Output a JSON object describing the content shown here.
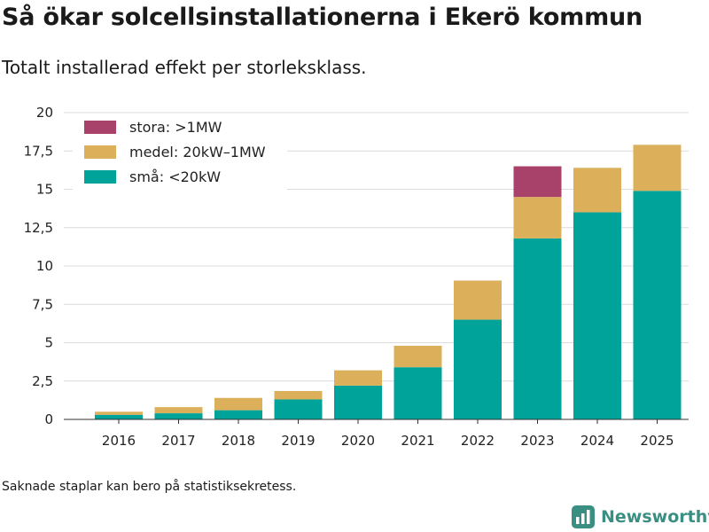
{
  "title": "Så ökar solcellsinstallationerna i Ekerö kommun",
  "subtitle": "Totalt installerad effekt per storleksklass.",
  "footnote": "Saknade staplar kan bero på statistiksekretess.",
  "brand": {
    "name": "Newsworthy",
    "color": "#3a8f82"
  },
  "chart_data": {
    "type": "bar",
    "stacked": true,
    "categories": [
      "2016",
      "2017",
      "2018",
      "2019",
      "2020",
      "2021",
      "2022",
      "2023",
      "2024",
      "2025"
    ],
    "series": [
      {
        "name": "små: <20kW",
        "color": "#00a39a",
        "values": [
          0.3,
          0.4,
          0.6,
          1.3,
          2.2,
          3.4,
          6.5,
          11.8,
          13.5,
          14.9
        ]
      },
      {
        "name": "medel: 20kW–1MW",
        "color": "#dcb05a",
        "values": [
          0.2,
          0.4,
          0.8,
          0.55,
          1.0,
          1.4,
          2.55,
          2.7,
          2.9,
          3.0
        ]
      },
      {
        "name": "stora: >1MW",
        "color": "#a8426a",
        "values": [
          0,
          0,
          0,
          0,
          0,
          0,
          0,
          2.0,
          0,
          0
        ]
      }
    ],
    "yticks": [
      "0",
      "2,5",
      "5",
      "7,5",
      "10",
      "12,5",
      "15",
      "17,5",
      "20"
    ],
    "ylim": [
      0,
      20
    ],
    "xlabel": "",
    "ylabel": "",
    "legend": {
      "position": "top-left",
      "items": [
        {
          "label": "stora: >1MW",
          "color": "#a8426a"
        },
        {
          "label": "medel: 20kW–1MW",
          "color": "#dcb05a"
        },
        {
          "label": "små: <20kW",
          "color": "#00a39a"
        }
      ]
    }
  }
}
